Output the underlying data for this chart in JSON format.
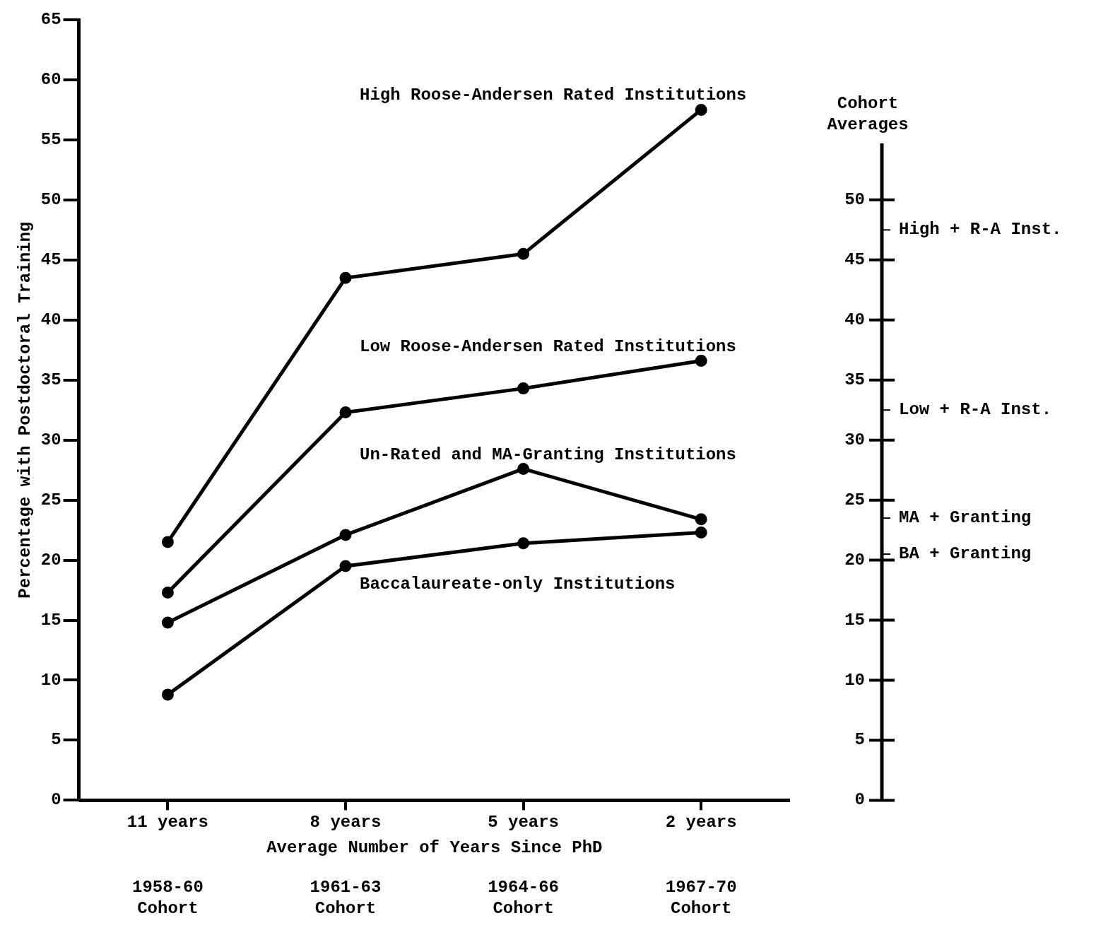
{
  "chart_data": {
    "type": "line",
    "xlabel": "Average Number of Years Since PhD",
    "ylabel": "Percentage with Postdoctoral Training",
    "y2label": "Cohort Averages",
    "categories": [
      "11 years",
      "8 years",
      "5 years",
      "2 years"
    ],
    "ylim": [
      0,
      65
    ],
    "yticks": [
      0,
      5,
      10,
      15,
      20,
      25,
      30,
      35,
      40,
      45,
      50,
      55,
      60,
      65
    ],
    "y2lim": [
      0,
      65
    ],
    "y2ticks": [
      0,
      5,
      10,
      15,
      20,
      25,
      30,
      35,
      40,
      45,
      50
    ],
    "grid": false,
    "legend": false,
    "marker": "circle",
    "line_style": "solid",
    "series": [
      {
        "name": "High Roose-Andersen Rated Institutions",
        "color": "#000000",
        "values": [
          21.5,
          43.5,
          45.5,
          57.5
        ]
      },
      {
        "name": "Low Roose-Andersen Rated Institutions",
        "color": "#000000",
        "values": [
          17.3,
          32.3,
          34.3,
          36.6
        ]
      },
      {
        "name": "Un-Rated and MA-Granting Institutions",
        "color": "#000000",
        "values": [
          14.8,
          22.1,
          27.6,
          23.4
        ]
      },
      {
        "name": "Baccalaureate-only Institutions",
        "color": "#000000",
        "values": [
          8.8,
          19.5,
          21.4,
          22.3
        ]
      }
    ],
    "ref_lines": [
      {
        "axis": "y2",
        "value": 47.5,
        "label": "High + R-A Inst."
      },
      {
        "axis": "y2",
        "value": 32.5,
        "label": "Low + R-A Inst."
      },
      {
        "axis": "y2",
        "value": 23.5,
        "label": "MA + Granting"
      },
      {
        "axis": "y2",
        "value": 20.5,
        "label": "BA + Granting"
      }
    ],
    "annotations": [
      "1958-60 Cohort",
      "1961-63 Cohort",
      "1964-66 Cohort",
      "1967-70 Cohort"
    ]
  }
}
